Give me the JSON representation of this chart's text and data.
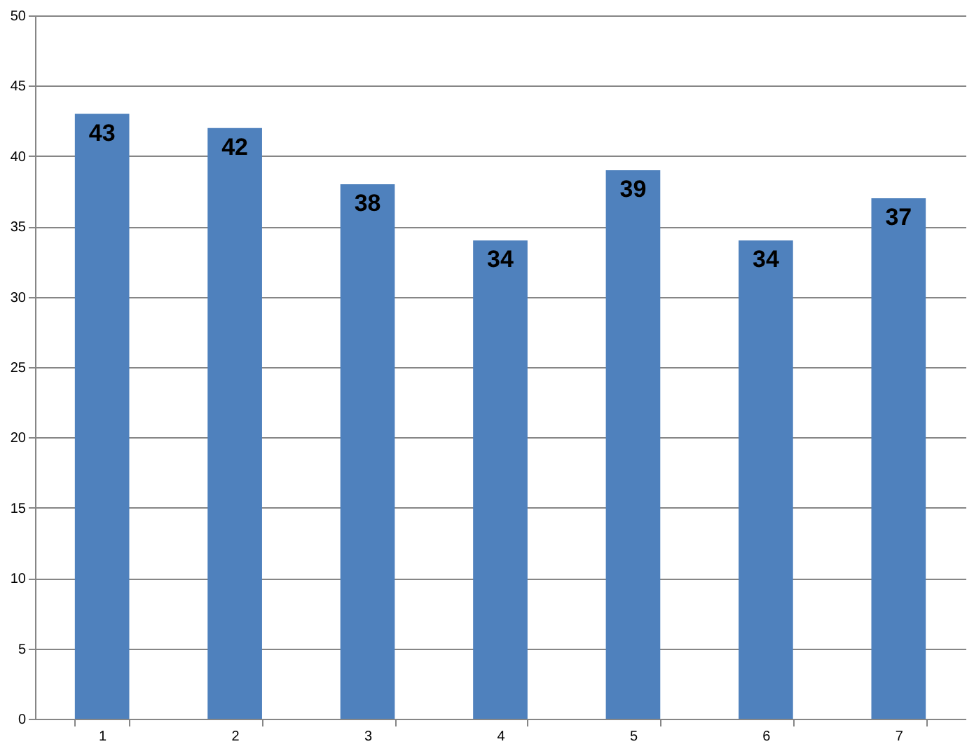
{
  "chart_data": {
    "type": "bar",
    "categories": [
      "1",
      "2",
      "3",
      "4",
      "5",
      "6",
      "7"
    ],
    "series": [
      {
        "color": "#4f81bd",
        "values": [
          43,
          42,
          38,
          34,
          39,
          34,
          37
        ]
      }
    ],
    "ylim": [
      0,
      50
    ],
    "yticks": [
      0,
      5,
      10,
      15,
      20,
      25,
      30,
      35,
      40,
      45,
      50
    ],
    "grid": "y",
    "data_labels": true,
    "legend": false
  }
}
